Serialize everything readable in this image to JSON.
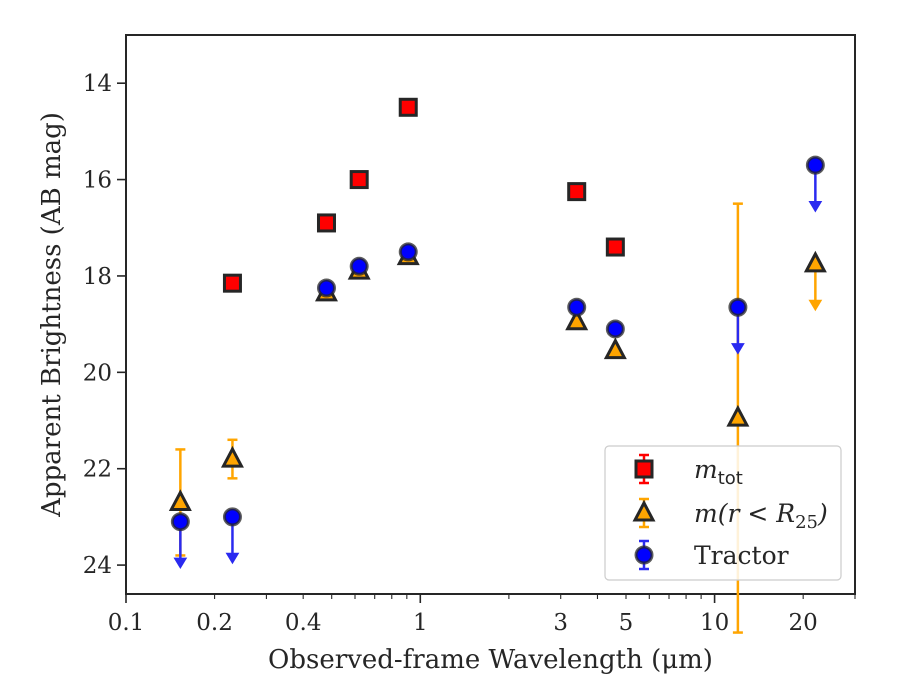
{
  "chart_data": {
    "type": "scatter",
    "xlabel": "Observed-frame Wavelength (μm)",
    "ylabel": "Apparent Brightness (AB mag)",
    "xscale": "log",
    "xlim": [
      0.1,
      30
    ],
    "ylim": [
      24.6,
      13
    ],
    "y_inverted": true,
    "x_ticks": [
      {
        "value": 0.1,
        "label": "0.1"
      },
      {
        "value": 0.2,
        "label": "0.2"
      },
      {
        "value": 0.4,
        "label": "0.4"
      },
      {
        "value": 1,
        "label": "1"
      },
      {
        "value": 3,
        "label": "3"
      },
      {
        "value": 5,
        "label": "5"
      },
      {
        "value": 10,
        "label": "10"
      },
      {
        "value": 20,
        "label": "20"
      }
    ],
    "y_ticks": [
      {
        "value": 14,
        "label": "14"
      },
      {
        "value": 16,
        "label": "16"
      },
      {
        "value": 18,
        "label": "18"
      },
      {
        "value": 20,
        "label": "20"
      },
      {
        "value": 22,
        "label": "22"
      },
      {
        "value": 24,
        "label": "24"
      }
    ],
    "grid": false,
    "legend": "lower-right",
    "series": [
      {
        "name": "m_tot",
        "legend_main": "m",
        "legend_sub": "tot",
        "marker": "square",
        "color": "#ff0000",
        "points": [
          {
            "x": 0.23,
            "y": 18.15
          },
          {
            "x": 0.48,
            "y": 16.9
          },
          {
            "x": 0.62,
            "y": 16.0
          },
          {
            "x": 0.91,
            "y": 14.5
          },
          {
            "x": 3.4,
            "y": 16.25
          },
          {
            "x": 4.6,
            "y": 17.4
          }
        ]
      },
      {
        "name": "m(r < R25)",
        "legend_main": "m(r < R",
        "legend_sub": "25",
        "legend_tail": ")",
        "marker": "triangle",
        "color": "#ffa500",
        "points": [
          {
            "x": 0.153,
            "y": 22.7,
            "err_low": 1.1,
            "err_high": 1.1
          },
          {
            "x": 0.23,
            "y": 21.8,
            "err_low": 0.4,
            "err_high": 0.4
          },
          {
            "x": 0.48,
            "y": 18.35
          },
          {
            "x": 0.62,
            "y": 17.9
          },
          {
            "x": 0.91,
            "y": 17.6
          },
          {
            "x": 3.4,
            "y": 18.95
          },
          {
            "x": 4.6,
            "y": 19.55
          },
          {
            "x": 12.0,
            "y": 20.95,
            "err_low": 4.45,
            "err_high": 4.45
          },
          {
            "x": 22.0,
            "y": 17.75,
            "upper_limit": true,
            "limit_to": 18.65
          }
        ]
      },
      {
        "name": "Tractor",
        "legend_main": "Tractor",
        "marker": "circle",
        "color": "#0000ff",
        "points": [
          {
            "x": 0.153,
            "y": 23.1,
            "upper_limit": true,
            "limit_to": 24.0
          },
          {
            "x": 0.23,
            "y": 23.0,
            "upper_limit": true,
            "limit_to": 23.9
          },
          {
            "x": 0.48,
            "y": 18.25
          },
          {
            "x": 0.62,
            "y": 17.8
          },
          {
            "x": 0.91,
            "y": 17.5
          },
          {
            "x": 3.4,
            "y": 18.65
          },
          {
            "x": 4.6,
            "y": 19.1
          },
          {
            "x": 12.0,
            "y": 18.65,
            "upper_limit": true,
            "limit_to": 19.55
          },
          {
            "x": 22.0,
            "y": 15.7,
            "upper_limit": true,
            "limit_to": 16.6
          }
        ]
      }
    ]
  }
}
